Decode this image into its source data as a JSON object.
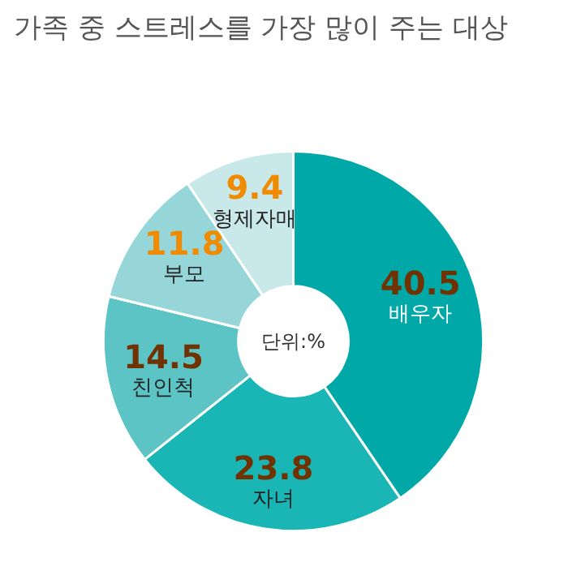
{
  "chart_data": {
    "type": "donut",
    "title": "가족 중 스트레스를 가장 많이 주는 대상",
    "categories": [
      "배우자",
      "자녀",
      "친인척",
      "부모",
      "형제자매"
    ],
    "values": [
      40.5,
      23.8,
      14.5,
      11.8,
      9.4
    ],
    "colors": [
      "#00a8a8",
      "#1ab5b5",
      "#5cc4c4",
      "#96d6d8",
      "#c8e8ea"
    ],
    "data_labels": true,
    "annotations": [
      "단위:%"
    ]
  }
}
